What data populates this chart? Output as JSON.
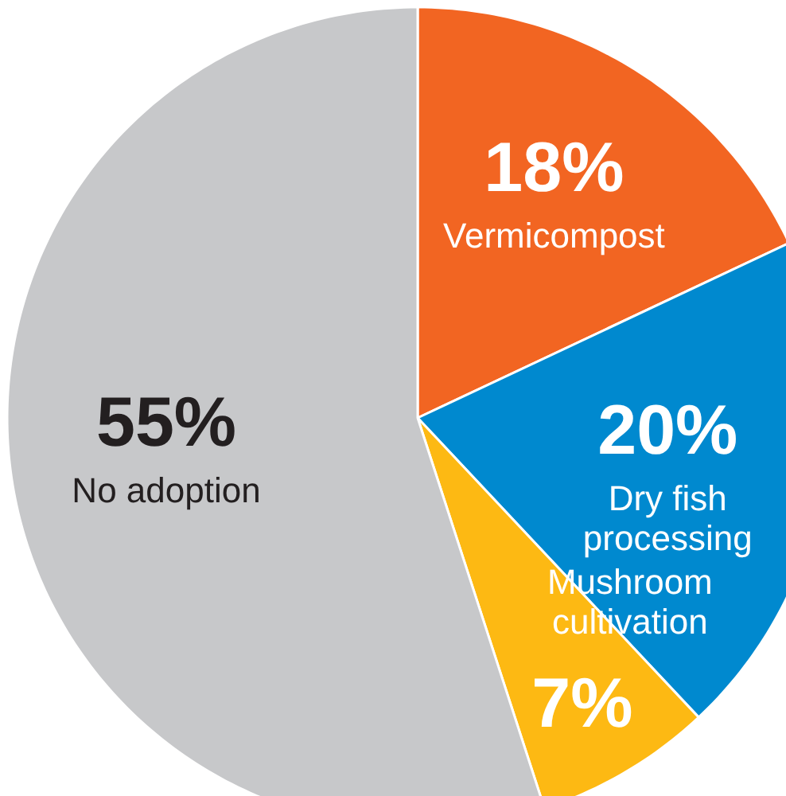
{
  "chart_data": {
    "type": "pie",
    "categories": [
      "Vermicompost",
      "Dry fish processing",
      "Mushroom cultivation",
      "No adoption"
    ],
    "values": [
      18,
      20,
      7,
      55
    ],
    "colors": [
      "#f26522",
      "#0089cf",
      "#fdb913",
      "#c7c8ca"
    ],
    "value_labels": [
      "18%",
      "20%",
      "7%",
      "55%"
    ]
  }
}
